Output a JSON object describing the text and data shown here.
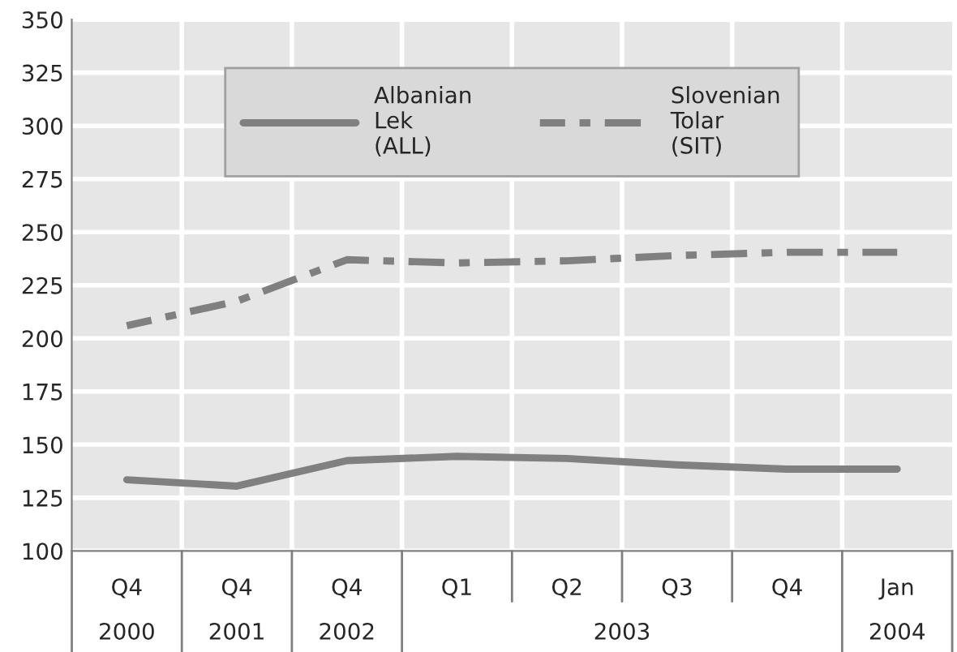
{
  "chart_data": {
    "type": "line",
    "categories": [
      "Q4",
      "Q4",
      "Q4",
      "Q1",
      "Q2",
      "Q3",
      "Q4",
      "Jan"
    ],
    "annotations": [
      "2000",
      "2001",
      "2002",
      "2003",
      "2004"
    ],
    "series": [
      {
        "name": "Albanian Lek (ALL)",
        "color": "#808080",
        "line_style": "solid",
        "values": [
          133.5,
          130.5,
          142.5,
          144.5,
          143.5,
          140.5,
          138.5,
          138.5
        ]
      },
      {
        "name": "Slovenian Tolar (SIT)",
        "color": "#808080",
        "line_style": "dashed",
        "values": [
          206,
          217.5,
          237,
          235.5,
          236.5,
          239,
          240.5,
          240.5
        ]
      }
    ],
    "ylim": [
      100,
      350
    ],
    "yticks": [
      100,
      125,
      150,
      175,
      200,
      225,
      250,
      275,
      300,
      325,
      350
    ],
    "grid": true,
    "legend": "top",
    "marker": "none"
  }
}
